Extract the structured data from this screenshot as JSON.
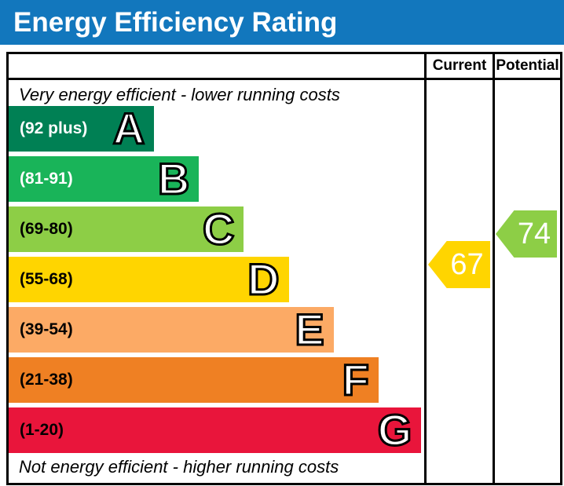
{
  "title": "Energy Efficiency Rating",
  "title_bar_color": "#1277bd",
  "columns": {
    "current": "Current",
    "potential": "Potential"
  },
  "notes": {
    "top": "Very energy efficient - lower running costs",
    "bottom": "Not energy efficient - higher running costs"
  },
  "current": {
    "value": "67",
    "band": "D",
    "color": "#ffd500"
  },
  "potential": {
    "value": "74",
    "band": "C",
    "color": "#8dce46"
  },
  "bands": [
    {
      "letter": "A",
      "range": "(92 plus)",
      "color": "#008054",
      "text_color": "#ffffff",
      "width_pct": 35
    },
    {
      "letter": "B",
      "range": "(81-91)",
      "color": "#19b459",
      "text_color": "#ffffff",
      "width_pct": 45.8
    },
    {
      "letter": "C",
      "range": "(69-80)",
      "color": "#8dce46",
      "text_color": "#000000",
      "width_pct": 56.6
    },
    {
      "letter": "D",
      "range": "(55-68)",
      "color": "#ffd500",
      "text_color": "#000000",
      "width_pct": 67.4
    },
    {
      "letter": "E",
      "range": "(39-54)",
      "color": "#fcaa65",
      "text_color": "#000000",
      "width_pct": 78.2
    },
    {
      "letter": "F",
      "range": "(21-38)",
      "color": "#ef8023",
      "text_color": "#000000",
      "width_pct": 89
    },
    {
      "letter": "G",
      "range": "(1-20)",
      "color": "#e9153b",
      "text_color": "#000000",
      "width_pct": 99.3
    }
  ],
  "chart_data": {
    "type": "bar",
    "orientation": "horizontal",
    "title": "Energy Efficiency Rating",
    "categories": [
      "A",
      "B",
      "C",
      "D",
      "E",
      "F",
      "G"
    ],
    "category_ranges": [
      "(92 plus)",
      "(81-91)",
      "(69-80)",
      "(55-68)",
      "(39-54)",
      "(21-38)",
      "(1-20)"
    ],
    "band_bounds": [
      [
        92,
        100
      ],
      [
        81,
        91
      ],
      [
        69,
        80
      ],
      [
        55,
        68
      ],
      [
        39,
        54
      ],
      [
        21,
        38
      ],
      [
        1,
        20
      ]
    ],
    "band_colors": [
      "#008054",
      "#19b459",
      "#8dce46",
      "#ffd500",
      "#fcaa65",
      "#ef8023",
      "#e9153b"
    ],
    "bar_lengths_pct": [
      35,
      45.8,
      56.6,
      67.4,
      78.2,
      89,
      99.3
    ],
    "series": [
      {
        "name": "Current",
        "value": 67,
        "band": "D",
        "marker_color": "#ffd500"
      },
      {
        "name": "Potential",
        "value": 74,
        "band": "C",
        "marker_color": "#8dce46"
      }
    ],
    "annotations": [
      "Very energy efficient - lower running costs",
      "Not energy efficient - higher running costs"
    ],
    "legend_position": "none",
    "grid": false
  }
}
